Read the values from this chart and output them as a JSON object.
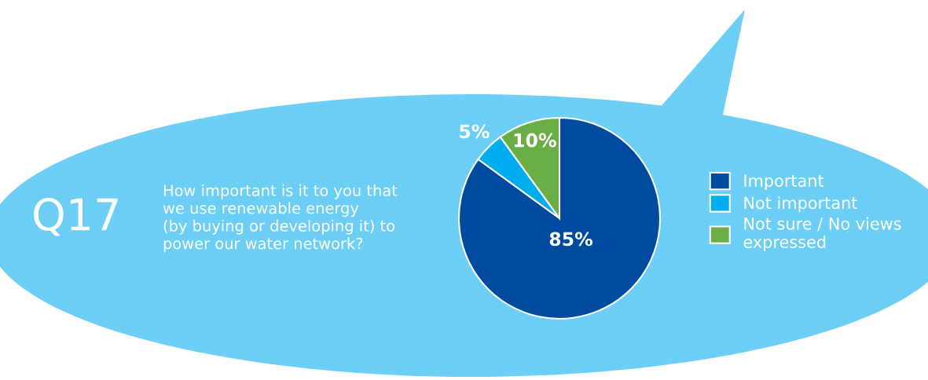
{
  "chart_data": {
    "type": "pie",
    "title": "Q17",
    "subtitle": "How important is it to you that\nwe use renewable energy\n(by buying or developing it) to\npower our water network?",
    "categories": [
      "Important",
      "Not important",
      "Not sure / No views\nexpressed"
    ],
    "values": [
      85,
      5,
      10
    ],
    "colors": [
      "#004a9f",
      "#00aeef",
      "#6aae45"
    ],
    "value_labels": [
      "85%",
      "5%",
      "10%"
    ],
    "legend": "right"
  }
}
